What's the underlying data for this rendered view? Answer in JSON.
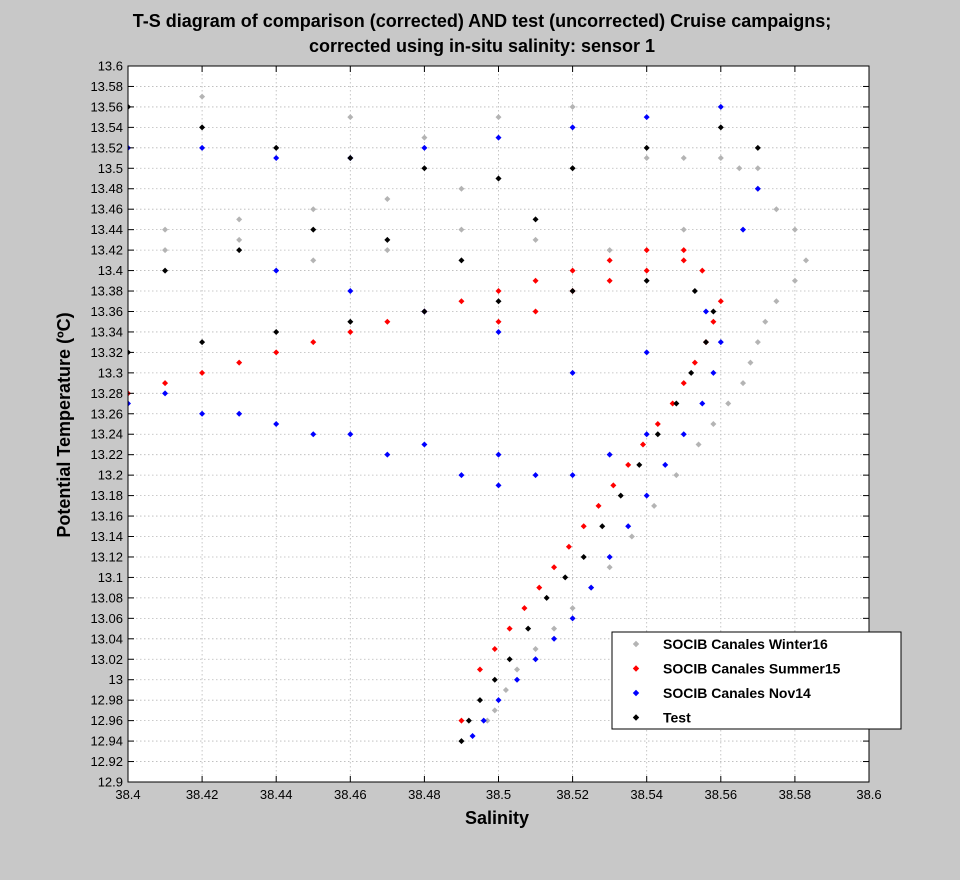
{
  "chart_data": {
    "type": "scatter",
    "title": [
      "T-S diagram of comparison (corrected) AND test (uncorrected) Cruise campaigns;",
      "corrected using in-situ salinity: sensor 1"
    ],
    "xlabel": "Salinity",
    "ylabel": "Potential Temperature (ºC)",
    "xlim": [
      38.4,
      38.6
    ],
    "ylim": [
      12.9,
      13.6
    ],
    "xticks": [
      "38.4",
      "38.42",
      "38.44",
      "38.46",
      "38.48",
      "38.5",
      "38.52",
      "38.54",
      "38.56",
      "38.58",
      "38.6"
    ],
    "yticks": [
      "12.9",
      "12.92",
      "12.94",
      "12.96",
      "12.98",
      "13",
      "13.02",
      "13.04",
      "13.06",
      "13.08",
      "13.1",
      "13.12",
      "13.14",
      "13.16",
      "13.18",
      "13.2",
      "13.22",
      "13.24",
      "13.26",
      "13.28",
      "13.3",
      "13.32",
      "13.34",
      "13.36",
      "13.38",
      "13.4",
      "13.42",
      "13.44",
      "13.46",
      "13.48",
      "13.5",
      "13.52",
      "13.54",
      "13.56",
      "13.58",
      "13.6"
    ],
    "grid": true,
    "legend_position": "bottom-right",
    "marker": "diamond",
    "series": [
      {
        "name": "SOCIB Canales Winter16",
        "color": "#b4b4b4",
        "x": [
          38.41,
          38.43,
          38.45,
          38.47,
          38.49,
          38.5,
          38.52,
          38.54,
          38.55,
          38.56,
          38.565,
          38.57,
          38.575,
          38.58,
          38.583,
          38.58,
          38.575,
          38.572,
          38.57,
          38.568,
          38.566,
          38.562,
          38.558,
          38.554,
          38.548,
          38.542,
          38.536,
          38.53,
          38.525,
          38.52,
          38.515,
          38.51,
          38.505,
          38.502,
          38.499,
          38.497,
          38.41,
          38.43,
          38.45,
          38.47,
          38.49,
          38.51,
          38.53,
          38.55,
          38.57,
          38.52,
          38.5,
          38.48,
          38.46,
          38.44,
          38.42
        ],
        "y": [
          13.44,
          13.45,
          13.46,
          13.47,
          13.48,
          13.49,
          13.5,
          13.51,
          13.51,
          13.51,
          13.5,
          13.48,
          13.46,
          13.44,
          13.41,
          13.39,
          13.37,
          13.35,
          13.33,
          13.31,
          13.29,
          13.27,
          13.25,
          13.23,
          13.2,
          13.17,
          13.14,
          13.11,
          13.09,
          13.07,
          13.05,
          13.03,
          13.01,
          12.99,
          12.97,
          12.96,
          13.42,
          13.43,
          13.41,
          13.42,
          13.44,
          13.43,
          13.42,
          13.44,
          13.5,
          13.56,
          13.55,
          13.53,
          13.55,
          13.52,
          13.57
        ]
      },
      {
        "name": "SOCIB Canales Summer15",
        "color": "#ff0000",
        "x": [
          38.4,
          38.41,
          38.42,
          38.43,
          38.44,
          38.45,
          38.46,
          38.47,
          38.48,
          38.49,
          38.5,
          38.51,
          38.52,
          38.53,
          38.54,
          38.55,
          38.555,
          38.56,
          38.558,
          38.556,
          38.553,
          38.55,
          38.547,
          38.543,
          38.539,
          38.535,
          38.531,
          38.527,
          38.523,
          38.519,
          38.515,
          38.511,
          38.507,
          38.503,
          38.499,
          38.495,
          38.49,
          38.5,
          38.51,
          38.52,
          38.53,
          38.54,
          38.55
        ],
        "y": [
          13.28,
          13.29,
          13.3,
          13.31,
          13.32,
          13.33,
          13.34,
          13.35,
          13.36,
          13.37,
          13.38,
          13.39,
          13.4,
          13.41,
          13.42,
          13.42,
          13.4,
          13.37,
          13.35,
          13.33,
          13.31,
          13.29,
          13.27,
          13.25,
          13.23,
          13.21,
          13.19,
          13.17,
          13.15,
          13.13,
          13.11,
          13.09,
          13.07,
          13.05,
          13.03,
          13.01,
          12.96,
          13.35,
          13.36,
          13.38,
          13.39,
          13.4,
          13.41
        ]
      },
      {
        "name": "SOCIB Canales Nov14",
        "color": "#0000ff",
        "x": [
          38.4,
          38.42,
          38.44,
          38.46,
          38.48,
          38.5,
          38.52,
          38.54,
          38.56,
          38.4,
          38.42,
          38.44,
          38.46,
          38.48,
          38.5,
          38.51,
          38.5,
          38.49,
          38.47,
          38.45,
          38.43,
          38.41,
          38.44,
          38.46,
          38.48,
          38.5,
          38.52,
          38.54,
          38.556,
          38.56,
          38.558,
          38.555,
          38.55,
          38.545,
          38.54,
          38.535,
          38.53,
          38.525,
          38.52,
          38.515,
          38.51,
          38.505,
          38.5,
          38.496,
          38.493,
          38.52,
          38.53,
          38.54,
          38.566,
          38.57
        ],
        "y": [
          13.52,
          13.52,
          13.51,
          13.51,
          13.52,
          13.53,
          13.54,
          13.55,
          13.56,
          13.27,
          13.26,
          13.25,
          13.24,
          13.23,
          13.22,
          13.2,
          13.19,
          13.2,
          13.22,
          13.24,
          13.26,
          13.28,
          13.4,
          13.38,
          13.36,
          13.34,
          13.3,
          13.32,
          13.36,
          13.33,
          13.3,
          13.27,
          13.24,
          13.21,
          13.18,
          13.15,
          13.12,
          13.09,
          13.06,
          13.04,
          13.02,
          13.0,
          12.98,
          12.96,
          12.945,
          13.2,
          13.22,
          13.24,
          13.44,
          13.48
        ]
      },
      {
        "name": "Test",
        "color": "#000000",
        "x": [
          38.4,
          38.42,
          38.44,
          38.46,
          38.48,
          38.5,
          38.52,
          38.54,
          38.553,
          38.558,
          38.556,
          38.552,
          38.548,
          38.543,
          38.538,
          38.533,
          38.528,
          38.523,
          38.518,
          38.513,
          38.508,
          38.503,
          38.499,
          38.495,
          38.492,
          38.49,
          38.4,
          38.42,
          38.44,
          38.46,
          38.48,
          38.5,
          38.52,
          38.54,
          38.56,
          38.57,
          38.41,
          38.43,
          38.45,
          38.47,
          38.49,
          38.51
        ],
        "y": [
          13.32,
          13.33,
          13.34,
          13.35,
          13.36,
          13.37,
          13.38,
          13.39,
          13.38,
          13.36,
          13.33,
          13.3,
          13.27,
          13.24,
          13.21,
          13.18,
          13.15,
          13.12,
          13.1,
          13.08,
          13.05,
          13.02,
          13.0,
          12.98,
          12.96,
          12.94,
          13.56,
          13.54,
          13.52,
          13.51,
          13.5,
          13.49,
          13.5,
          13.52,
          13.54,
          13.52,
          13.4,
          13.42,
          13.44,
          13.43,
          13.41,
          13.45
        ]
      }
    ]
  }
}
